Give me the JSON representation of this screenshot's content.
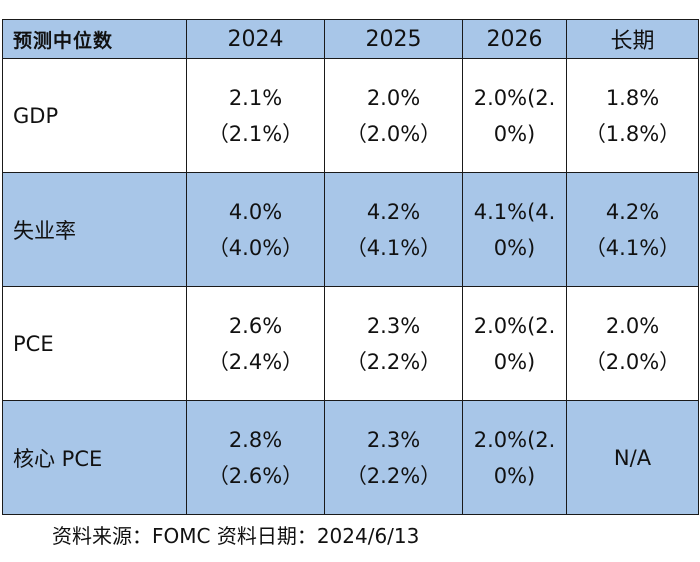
{
  "table": {
    "headers": [
      "预测中位数",
      "2024",
      "2025",
      "2026",
      "长期"
    ],
    "rows": [
      {
        "label": "GDP",
        "cells": [
          {
            "current": "2.1%",
            "previous": "（2.1%）"
          },
          {
            "current": "2.0%",
            "previous": "（2.0%）"
          },
          {
            "current": "2.0%",
            "previous": "(2.0%)"
          },
          {
            "current": "1.8%",
            "previous": "（1.8%）"
          }
        ]
      },
      {
        "label": "失业率",
        "cells": [
          {
            "current": "4.0%",
            "previous": "（4.0%）"
          },
          {
            "current": "4.2%",
            "previous": "（4.1%）"
          },
          {
            "current": "4.1%",
            "previous": "(4.0%)"
          },
          {
            "current": "4.2%",
            "previous": "（4.1%）"
          }
        ]
      },
      {
        "label": "PCE",
        "cells": [
          {
            "current": "2.6%",
            "previous": "（2.4%）"
          },
          {
            "current": "2.3%",
            "previous": "（2.2%）"
          },
          {
            "current": "2.0%",
            "previous": "(2.0%)"
          },
          {
            "current": "2.0%",
            "previous": "（2.0%）"
          }
        ]
      },
      {
        "label": "核心 PCE",
        "cells": [
          {
            "current": "2.8%",
            "previous": "（2.6%）"
          },
          {
            "current": "2.3%",
            "previous": "（2.2%）"
          },
          {
            "current": "2.0%",
            "previous": "(2.0%)"
          },
          {
            "current": "N/A",
            "previous": ""
          }
        ]
      }
    ]
  },
  "footnote": "资料来源：FOMC  资料日期：2024/6/13",
  "colors": {
    "header_fill": "#a8c6e8",
    "band_fill": "#a8c6e8",
    "white_fill": "#ffffff",
    "border": "#1a1a1a"
  }
}
